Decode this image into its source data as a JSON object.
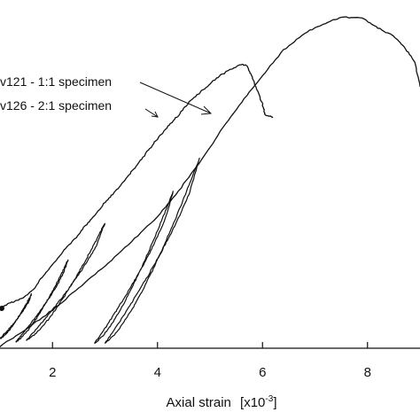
{
  "chart_data": {
    "type": "line",
    "title": "",
    "xlabel": "Axial strain",
    "xlabel_unit": "[x10",
    "xlabel_exp": "-3",
    "xlabel_close": "]",
    "ylabel": "",
    "xlim": [
      1.0,
      9.0
    ],
    "ylim": [
      0,
      100
    ],
    "x_ticks": [
      2,
      4,
      6,
      8
    ],
    "x_tick_labels": [
      "2",
      "4",
      "6",
      "8"
    ],
    "grid": false,
    "legend": "top-left",
    "line_color": "#111111",
    "series": [
      {
        "name": "v121 - 1:1 specimen",
        "points": [
          [
            1.0,
            11.8
          ],
          [
            1.2,
            13.5
          ],
          [
            1.4,
            14.5
          ],
          [
            1.6,
            16.8
          ],
          [
            1.8,
            21
          ],
          [
            2.0,
            24.8
          ],
          [
            2.2,
            28.6
          ],
          [
            2.4,
            31.9
          ],
          [
            2.6,
            35.7
          ],
          [
            2.8,
            39.4
          ],
          [
            3.0,
            43.2
          ],
          [
            3.2,
            46.5
          ],
          [
            3.4,
            50.2
          ],
          [
            3.6,
            54.0
          ],
          [
            3.8,
            58.2
          ],
          [
            4.0,
            62.0
          ],
          [
            4.2,
            65.7
          ],
          [
            4.4,
            69.0
          ],
          [
            4.6,
            72.8
          ],
          [
            4.8,
            75.6
          ],
          [
            5.0,
            78.4
          ],
          [
            5.2,
            80.8
          ],
          [
            5.4,
            82.6
          ],
          [
            5.6,
            84.1
          ],
          [
            5.7,
            83.6
          ],
          [
            5.8,
            80.3
          ],
          [
            5.9,
            76.5
          ],
          [
            6.0,
            72.3
          ],
          [
            6.05,
            69.0
          ],
          [
            6.2,
            68.5
          ]
        ],
        "unload_reload_loops": [
          {
            "x": [
              1.0,
              1.6
            ],
            "y": [
              2.8,
              16.0
            ]
          },
          {
            "x": [
              1.3,
              2.3
            ],
            "y": [
              1.9,
              26.3
            ]
          },
          {
            "x": [
              1.5,
              3.0
            ],
            "y": [
              2.3,
              37.1
            ]
          }
        ]
      },
      {
        "name": "v126 - 2:1 specimen",
        "points": [
          [
            1.0,
            0.5
          ],
          [
            1.5,
            5.6
          ],
          [
            2.0,
            11.3
          ],
          [
            2.5,
            17.8
          ],
          [
            3.0,
            24.4
          ],
          [
            3.5,
            31.5
          ],
          [
            4.0,
            39.0
          ],
          [
            4.4,
            46.5
          ],
          [
            4.8,
            54.9
          ],
          [
            5.2,
            64.3
          ],
          [
            5.6,
            72.8
          ],
          [
            6.0,
            80.8
          ],
          [
            6.4,
            88.3
          ],
          [
            6.8,
            93.4
          ],
          [
            7.2,
            96.2
          ],
          [
            7.5,
            98.1
          ],
          [
            7.9,
            97.7
          ],
          [
            8.2,
            94.8
          ],
          [
            8.5,
            92.5
          ],
          [
            8.7,
            89.2
          ],
          [
            8.9,
            85.0
          ],
          [
            9.0,
            77.5
          ]
        ],
        "unload_reload_loops": [
          {
            "x": [
              2.8,
              4.3
            ],
            "y": [
              1.4,
              46.5
            ]
          },
          {
            "x": [
              3.0,
              4.8
            ],
            "y": [
              1.4,
              56.3
            ]
          }
        ]
      }
    ],
    "annotations": [
      {
        "text": "arrow",
        "target_series": 0
      },
      {
        "text": "arrow",
        "target_series": 1
      }
    ]
  }
}
